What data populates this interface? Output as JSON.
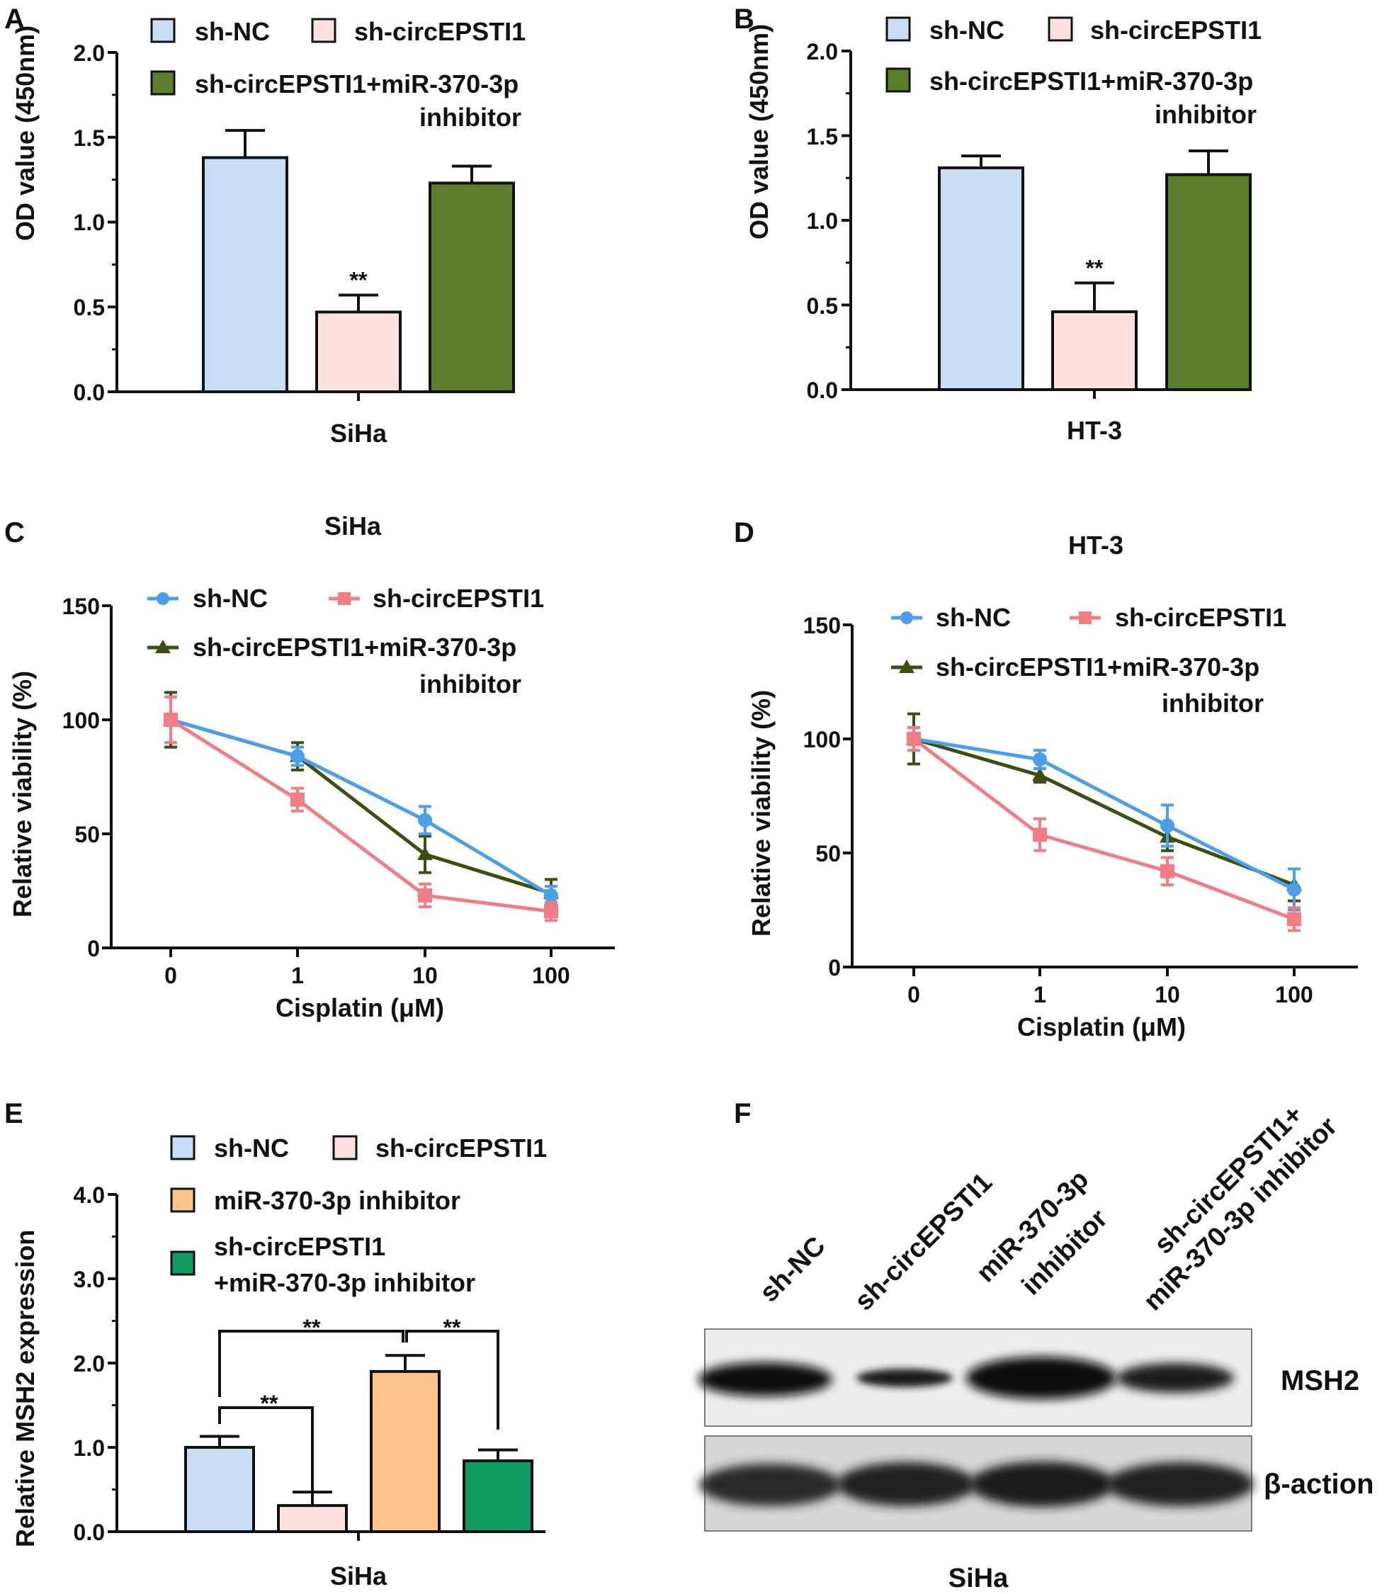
{
  "colors": {
    "sh_nc": "#c9ddf5",
    "sh_circ": "#fde0e0",
    "inhib": "#5a7e2c",
    "mir_inhib": "#fcc48a",
    "combo": "#119a63",
    "line_nc": "#4a9eea",
    "line_circ": "#f07c84",
    "line_inhib": "#3a4f10"
  },
  "chart_data": [
    {
      "panel": "A",
      "type": "bar",
      "ylabel": "OD value (450nm)",
      "xlabel": "SiHa",
      "ylim": [
        0,
        2.0
      ],
      "yticks": [
        "0.0",
        "0.5",
        "1.0",
        "1.5",
        "2.0"
      ],
      "legend": [
        "sh-NC",
        "sh-circEPSTI1",
        "sh-circEPSTI1+miR-370-3p",
        "inhibitor"
      ],
      "series": [
        {
          "name": "sh-NC",
          "value": 1.38,
          "error": 0.16
        },
        {
          "name": "sh-circEPSTI1",
          "value": 0.47,
          "error": 0.1,
          "annotation": "**"
        },
        {
          "name": "sh-circEPSTI1+miR-370-3p inhibitor",
          "value": 1.23,
          "error": 0.1
        }
      ]
    },
    {
      "panel": "B",
      "type": "bar",
      "ylabel": "OD value (450nm)",
      "xlabel": "HT-3",
      "ylim": [
        0,
        2.0
      ],
      "yticks": [
        "0.0",
        "0.5",
        "1.0",
        "1.5",
        "2.0"
      ],
      "legend": [
        "sh-NC",
        "sh-circEPSTI1",
        "sh-circEPSTI1+miR-370-3p",
        "inhibitor"
      ],
      "series": [
        {
          "name": "sh-NC",
          "value": 1.31,
          "error": 0.07
        },
        {
          "name": "sh-circEPSTI1",
          "value": 0.46,
          "error": 0.17,
          "annotation": "**"
        },
        {
          "name": "sh-circEPSTI1+miR-370-3p inhibitor",
          "value": 1.27,
          "error": 0.14
        }
      ]
    },
    {
      "panel": "C",
      "type": "line",
      "title": "SiHa",
      "ylabel": "Relative viability (%)",
      "xlabel": "Cisplatin (μM)",
      "categories": [
        "0",
        "1",
        "10",
        "100"
      ],
      "ylim": [
        0,
        150
      ],
      "yticks": [
        "0",
        "50",
        "100",
        "150"
      ],
      "legend": [
        "sh-NC",
        "sh-circEPSTI1",
        "sh-circEPSTI1+miR-370-3p",
        "inhibitor"
      ],
      "series": [
        {
          "name": "sh-NC",
          "values": [
            100,
            84,
            56,
            23
          ],
          "errors": [
            10,
            4,
            6,
            4
          ]
        },
        {
          "name": "sh-circEPSTI1",
          "values": [
            100,
            65,
            23,
            16
          ],
          "errors": [
            10,
            5,
            5,
            4
          ]
        },
        {
          "name": "sh-circEPSTI1+miR-370-3p inhibitor",
          "values": [
            100,
            84,
            41,
            24
          ],
          "errors": [
            12,
            6,
            8,
            6
          ]
        }
      ]
    },
    {
      "panel": "D",
      "type": "line",
      "title": "HT-3",
      "ylabel": "Relative viability (%)",
      "xlabel": "Cisplatin (μM)",
      "categories": [
        "0",
        "1",
        "10",
        "100"
      ],
      "ylim": [
        0,
        150
      ],
      "yticks": [
        "0",
        "50",
        "100",
        "150"
      ],
      "legend": [
        "sh-NC",
        "sh-circEPSTI1",
        "sh-circEPSTI1+miR-370-3p",
        "inhibitor"
      ],
      "series": [
        {
          "name": "sh-NC",
          "values": [
            100,
            91,
            62,
            34
          ],
          "errors": [
            5,
            4,
            9,
            9
          ]
        },
        {
          "name": "sh-circEPSTI1",
          "values": [
            100,
            58,
            42,
            21
          ],
          "errors": [
            5,
            7,
            6,
            5
          ]
        },
        {
          "name": "sh-circEPSTI1+miR-370-3p inhibitor",
          "values": [
            100,
            84,
            57,
            36
          ],
          "errors": [
            11,
            3,
            6,
            7
          ]
        }
      ]
    },
    {
      "panel": "E",
      "type": "bar",
      "ylabel": "Relative MSH2 expression",
      "xlabel": "SiHa",
      "ylim": [
        0,
        4.0
      ],
      "yticks": [
        "0.0",
        "1.0",
        "2.0",
        "3.0",
        "4.0"
      ],
      "legend": [
        "sh-NC",
        "sh-circEPSTI1",
        "miR-370-3p inhibitor",
        "sh-circEPSTI1",
        "+miR-370-3p inhibitor"
      ],
      "significance": "**",
      "series": [
        {
          "name": "sh-NC",
          "value": 1.0,
          "error": 0.13
        },
        {
          "name": "sh-circEPSTI1",
          "value": 0.31,
          "error": 0.16
        },
        {
          "name": "miR-370-3p inhibitor",
          "value": 1.9,
          "error": 0.19
        },
        {
          "name": "sh-circEPSTI1 +miR-370-3p inhibitor",
          "value": 0.84,
          "error": 0.13
        }
      ]
    }
  ],
  "blot": {
    "panel": "F",
    "lanes": [
      "sh-NC",
      "sh-circEPSTI1",
      "miR-370-3p",
      "inhibitor",
      "sh-circEPSTI1+",
      "miR-370-3p inhibitor"
    ],
    "rows": [
      "MSH2",
      "β-action"
    ],
    "caption": "SiHa"
  }
}
